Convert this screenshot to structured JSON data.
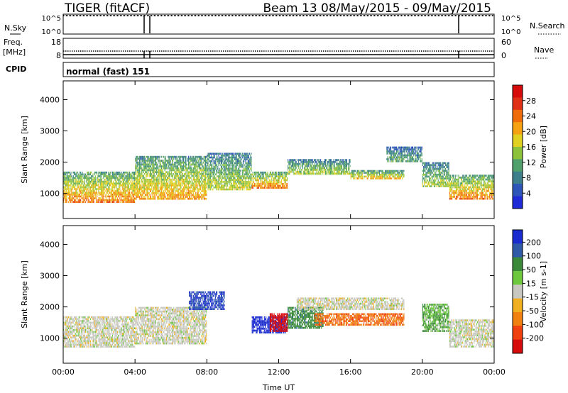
{
  "header": {
    "station": "TIGER (fitACF)",
    "beam_and_dates": "Beam 13 08/May/2015 - 09/May/2015"
  },
  "status_panels": {
    "nsky_label": "N.Sky",
    "nsearch_label": "N.Search",
    "freq_label_line1": "Freq.",
    "freq_label_line2": "[MHz]",
    "nave_label": "Nave",
    "cpid_label": "CPID",
    "cpid_value": "normal (fast) 151",
    "nsky_ticks": [
      "10^5",
      "10^0"
    ],
    "nsearch_ticks": [
      "10^5",
      "10^0"
    ],
    "freq_ticks": [
      "18",
      "8"
    ],
    "nave_ticks": [
      "60",
      "0"
    ]
  },
  "chart_data": [
    {
      "type": "heatmap",
      "panel": "power",
      "xlabel": "",
      "ylabel": "Slant Range [km]",
      "x_ticks": [
        "00:00",
        "04:00",
        "08:00",
        "12:00",
        "16:00",
        "20:00",
        "00:00"
      ],
      "x_hours": [
        0,
        4,
        8,
        12,
        16,
        20,
        24
      ],
      "xlim": [
        0,
        24
      ],
      "y_ticks": [
        1000,
        2000,
        3000,
        4000
      ],
      "ylim": [
        200,
        4600
      ],
      "colorbar": {
        "label": "Power [dB]",
        "ticks": [
          4,
          8,
          12,
          16,
          20,
          24,
          28
        ],
        "range": [
          0,
          32
        ],
        "colors": [
          "#1f2bd6",
          "#2d56b8",
          "#3d7f8a",
          "#4fa06a",
          "#8cc23c",
          "#e0d020",
          "#f5a312",
          "#f06b0a",
          "#e03018",
          "#d80b0b"
        ]
      },
      "echo_bands": [
        {
          "t0": 0.0,
          "t1": 4.0,
          "r0": 700,
          "r1": 1700,
          "p": 22
        },
        {
          "t0": 4.0,
          "t1": 8.0,
          "r0": 800,
          "r1": 2200,
          "p": 20
        },
        {
          "t0": 8.0,
          "t1": 10.5,
          "r0": 1100,
          "r1": 2300,
          "p": 15
        },
        {
          "t0": 10.5,
          "t1": 12.5,
          "r0": 1150,
          "r1": 1700,
          "p": 22
        },
        {
          "t0": 12.5,
          "t1": 16.0,
          "r0": 1600,
          "r1": 2100,
          "p": 14
        },
        {
          "t0": 16.0,
          "t1": 19.0,
          "r0": 1450,
          "r1": 1750,
          "p": 18
        },
        {
          "t0": 18.0,
          "t1": 20.0,
          "r0": 2000,
          "r1": 2500,
          "p": 10
        },
        {
          "t0": 20.0,
          "t1": 21.5,
          "r0": 1200,
          "r1": 2000,
          "p": 14
        },
        {
          "t0": 21.5,
          "t1": 24.0,
          "r0": 800,
          "r1": 1600,
          "p": 22
        }
      ]
    },
    {
      "type": "heatmap",
      "panel": "velocity",
      "xlabel": "Time UT",
      "ylabel": "Slant Range [km]",
      "x_ticks": [
        "00:00",
        "04:00",
        "08:00",
        "12:00",
        "16:00",
        "20:00",
        "00:00"
      ],
      "x_hours": [
        0,
        4,
        8,
        12,
        16,
        20,
        24
      ],
      "xlim": [
        0,
        24
      ],
      "y_ticks": [
        1000,
        2000,
        3000,
        4000
      ],
      "ylim": [
        200,
        4600
      ],
      "colorbar": {
        "label": "Velocity [m s-1]",
        "ticks": [
          "200",
          "100",
          "50",
          "15",
          "-15",
          "-50",
          "-100",
          "-200"
        ],
        "colors": [
          "#1a2bd0",
          "#2e5aa8",
          "#3a8a3a",
          "#6cc83c",
          "#c8c8c0",
          "#f0b020",
          "#f08010",
          "#f04010",
          "#d80b0b"
        ]
      },
      "echo_bands": [
        {
          "t0": 0.0,
          "t1": 4.0,
          "r0": 700,
          "r1": 1700,
          "v": 0
        },
        {
          "t0": 4.0,
          "t1": 8.0,
          "r0": 800,
          "r1": 2000,
          "v": 0
        },
        {
          "t0": 7.0,
          "t1": 9.0,
          "r0": 1900,
          "r1": 2500,
          "v": 150
        },
        {
          "t0": 10.5,
          "t1": 12.5,
          "r0": 1150,
          "r1": 1700,
          "v": 200
        },
        {
          "t0": 11.5,
          "t1": 12.5,
          "r0": 1200,
          "r1": 1800,
          "v": -200
        },
        {
          "t0": 12.5,
          "t1": 14.5,
          "r0": 1300,
          "r1": 2000,
          "v": 60
        },
        {
          "t0": 14.0,
          "t1": 19.0,
          "r0": 1400,
          "r1": 1800,
          "v": -70
        },
        {
          "t0": 13.0,
          "t1": 19.0,
          "r0": 1900,
          "r1": 2300,
          "v": 0
        },
        {
          "t0": 20.0,
          "t1": 21.5,
          "r0": 1200,
          "r1": 2100,
          "v": 30
        },
        {
          "t0": 21.5,
          "t1": 24.0,
          "r0": 700,
          "r1": 1600,
          "v": 0
        }
      ]
    }
  ]
}
